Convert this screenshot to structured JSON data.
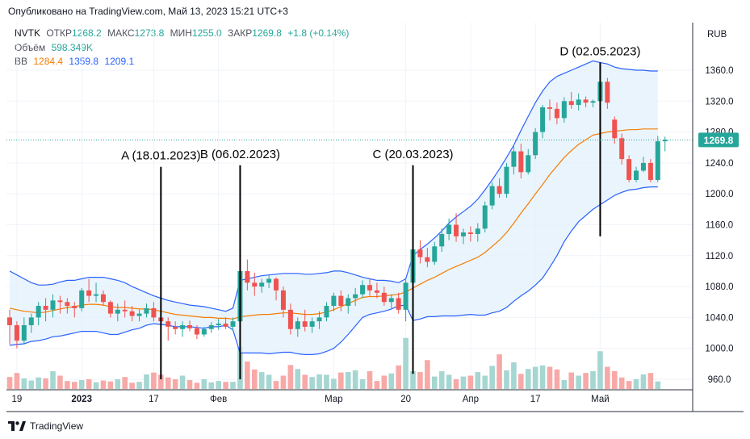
{
  "published": "Опубликовано на TradingView.com, Май 13, 2023 15:21 UTC+3",
  "legend": {
    "symbol": "NVTK",
    "open_label": "ОТКР",
    "open": "1268.2",
    "high_label": "МАКС",
    "high": "1273.8",
    "low_label": "МИН",
    "low": "1255.0",
    "close_label": "ЗАКР",
    "close": "1269.8",
    "change": "+1.8 (+0.14%)",
    "volume_label": "Объём",
    "volume": "598.349K",
    "bb_label": "BB",
    "bb_basis": "1284.4",
    "bb_upper": "1359.8",
    "bb_lower": "1209.1"
  },
  "currency": "RUB",
  "last_price": "1269.8",
  "footer_brand": "TradingView",
  "chart_data": {
    "type": "candlestick",
    "ylim": [
      945,
      1380
    ],
    "y_ticks": [
      "1360.0",
      "1320.0",
      "1280.0",
      "1240.0",
      "1200.0",
      "1160.0",
      "1120.0",
      "1080.0",
      "1040.0",
      "1000.0",
      "960.0"
    ],
    "x_ticks": [
      {
        "label": "19",
        "i": 1
      },
      {
        "label": "2023",
        "i": 10
      },
      {
        "label": "17",
        "i": 20
      },
      {
        "label": "Фев",
        "i": 29
      },
      {
        "label": "Мар",
        "i": 45
      },
      {
        "label": "20",
        "i": 55
      },
      {
        "label": "Апр",
        "i": 64
      },
      {
        "label": "17",
        "i": 73
      },
      {
        "label": "Май",
        "i": 82
      }
    ],
    "annotations": [
      {
        "label": "A (18.01.2023)",
        "i": 21,
        "y_top": 1235,
        "y_bottom": 960
      },
      {
        "label": "B (06.02.2023)",
        "i": 32,
        "y_top": 1237,
        "y_bottom": 960
      },
      {
        "label": "C (20.03.2023)",
        "i": 56,
        "y_top": 1237,
        "y_bottom": 967
      },
      {
        "label": "D (02.05.2023)",
        "i": 82,
        "y_top": 1370,
        "y_bottom": 1145
      }
    ],
    "colors": {
      "up": "#26a69a",
      "down": "#ef5350",
      "up_vol": "#a5d6d2",
      "down_vol": "#f7a9a7",
      "basis": "#f57c00",
      "band": "#2962ff",
      "fill": "#e3f0fb"
    },
    "candles": [
      [
        1040,
        1050,
        1005,
        1030
      ],
      [
        1030,
        1035,
        1000,
        1010
      ],
      [
        1010,
        1040,
        1005,
        1030
      ],
      [
        1030,
        1045,
        1020,
        1040
      ],
      [
        1040,
        1060,
        1030,
        1055
      ],
      [
        1055,
        1065,
        1035,
        1050
      ],
      [
        1050,
        1070,
        1040,
        1062
      ],
      [
        1062,
        1068,
        1045,
        1060
      ],
      [
        1060,
        1065,
        1045,
        1055
      ],
      [
        1055,
        1060,
        1040,
        1052
      ],
      [
        1052,
        1078,
        1048,
        1075
      ],
      [
        1075,
        1090,
        1060,
        1068
      ],
      [
        1068,
        1085,
        1060,
        1070
      ],
      [
        1070,
        1075,
        1055,
        1060
      ],
      [
        1060,
        1062,
        1040,
        1045
      ],
      [
        1045,
        1058,
        1035,
        1050
      ],
      [
        1050,
        1062,
        1040,
        1048
      ],
      [
        1048,
        1055,
        1035,
        1042
      ],
      [
        1042,
        1050,
        1035,
        1045
      ],
      [
        1045,
        1058,
        1040,
        1052
      ],
      [
        1052,
        1060,
        1035,
        1040
      ],
      [
        1040,
        1048,
        1020,
        1035
      ],
      [
        1035,
        1040,
        1010,
        1028
      ],
      [
        1028,
        1035,
        1018,
        1025
      ],
      [
        1025,
        1035,
        1015,
        1030
      ],
      [
        1030,
        1036,
        1022,
        1026
      ],
      [
        1026,
        1030,
        1012,
        1018
      ],
      [
        1018,
        1028,
        1015,
        1025
      ],
      [
        1025,
        1034,
        1020,
        1030
      ],
      [
        1030,
        1038,
        1024,
        1032
      ],
      [
        1032,
        1040,
        1025,
        1028
      ],
      [
        1028,
        1040,
        1022,
        1035
      ],
      [
        1035,
        1103,
        1030,
        1100
      ],
      [
        1100,
        1115,
        1075,
        1085
      ],
      [
        1085,
        1098,
        1068,
        1080
      ],
      [
        1080,
        1090,
        1072,
        1085
      ],
      [
        1085,
        1095,
        1078,
        1090
      ],
      [
        1090,
        1092,
        1062,
        1075
      ],
      [
        1075,
        1080,
        1040,
        1050
      ],
      [
        1050,
        1058,
        1018,
        1025
      ],
      [
        1025,
        1040,
        1015,
        1035
      ],
      [
        1035,
        1050,
        1022,
        1028
      ],
      [
        1028,
        1040,
        1020,
        1035
      ],
      [
        1035,
        1048,
        1025,
        1040
      ],
      [
        1040,
        1060,
        1035,
        1055
      ],
      [
        1055,
        1072,
        1048,
        1068
      ],
      [
        1068,
        1075,
        1048,
        1055
      ],
      [
        1055,
        1070,
        1045,
        1065
      ],
      [
        1065,
        1078,
        1055,
        1070
      ],
      [
        1070,
        1088,
        1065,
        1082
      ],
      [
        1082,
        1090,
        1068,
        1075
      ],
      [
        1075,
        1085,
        1065,
        1072
      ],
      [
        1072,
        1080,
        1055,
        1060
      ],
      [
        1060,
        1070,
        1052,
        1065
      ],
      [
        1065,
        1072,
        1045,
        1050
      ],
      [
        1050,
        1090,
        1035,
        1085
      ],
      [
        1085,
        1135,
        1080,
        1128
      ],
      [
        1128,
        1140,
        1110,
        1118
      ],
      [
        1118,
        1130,
        1105,
        1112
      ],
      [
        1112,
        1138,
        1108,
        1132
      ],
      [
        1132,
        1155,
        1125,
        1148
      ],
      [
        1148,
        1168,
        1140,
        1160
      ],
      [
        1160,
        1175,
        1138,
        1145
      ],
      [
        1145,
        1155,
        1135,
        1150
      ],
      [
        1150,
        1158,
        1138,
        1148
      ],
      [
        1148,
        1162,
        1138,
        1155
      ],
      [
        1155,
        1190,
        1150,
        1185
      ],
      [
        1185,
        1215,
        1180,
        1210
      ],
      [
        1210,
        1220,
        1195,
        1200
      ],
      [
        1200,
        1240,
        1195,
        1235
      ],
      [
        1235,
        1262,
        1225,
        1255
      ],
      [
        1255,
        1265,
        1220,
        1228
      ],
      [
        1228,
        1258,
        1225,
        1250
      ],
      [
        1250,
        1285,
        1245,
        1280
      ],
      [
        1280,
        1315,
        1272,
        1312
      ],
      [
        1312,
        1322,
        1295,
        1310
      ],
      [
        1310,
        1318,
        1290,
        1298
      ],
      [
        1298,
        1325,
        1292,
        1320
      ],
      [
        1320,
        1332,
        1310,
        1315
      ],
      [
        1315,
        1330,
        1308,
        1322
      ],
      [
        1322,
        1326,
        1312,
        1318
      ],
      [
        1318,
        1322,
        1312,
        1320
      ],
      [
        1320,
        1350,
        1312,
        1345
      ],
      [
        1345,
        1350,
        1310,
        1318
      ],
      [
        1296,
        1300,
        1265,
        1272
      ],
      [
        1272,
        1278,
        1238,
        1245
      ],
      [
        1245,
        1250,
        1215,
        1218
      ],
      [
        1218,
        1235,
        1215,
        1230
      ],
      [
        1230,
        1248,
        1228,
        1240
      ],
      [
        1240,
        1245,
        1215,
        1218
      ],
      [
        1218,
        1275,
        1215,
        1268
      ],
      [
        1268,
        1274,
        1255,
        1270
      ]
    ],
    "volume": [
      27,
      36,
      24,
      19,
      26,
      24,
      40,
      30,
      18,
      16,
      20,
      22,
      15,
      19,
      17,
      22,
      27,
      14,
      16,
      33,
      37,
      32,
      26,
      22,
      30,
      20,
      14,
      22,
      15,
      18,
      16,
      16,
      95,
      62,
      44,
      38,
      32,
      18,
      30,
      54,
      45,
      32,
      27,
      33,
      32,
      23,
      37,
      38,
      42,
      22,
      40,
      18,
      30,
      35,
      53,
      115,
      40,
      38,
      65,
      28,
      40,
      32,
      22,
      28,
      30,
      38,
      30,
      52,
      78,
      42,
      60,
      34,
      45,
      50,
      53,
      50,
      44,
      20,
      37,
      30,
      36,
      40,
      85,
      50,
      40,
      26,
      18,
      22,
      33,
      36,
      17
    ],
    "bb_basis": [
      1052,
      1050,
      1048,
      1047,
      1046,
      1047,
      1049,
      1051,
      1053,
      1054,
      1056,
      1057,
      1057,
      1056,
      1054,
      1053,
      1053,
      1052,
      1051,
      1051,
      1050,
      1048,
      1046,
      1044,
      1043,
      1042,
      1041,
      1040,
      1040,
      1039,
      1039,
      1038,
      1041,
      1042,
      1043,
      1044,
      1044,
      1045,
      1046,
      1046,
      1045,
      1044,
      1044,
      1045,
      1047,
      1050,
      1054,
      1058,
      1062,
      1066,
      1067,
      1067,
      1068,
      1069,
      1070,
      1073,
      1078,
      1083,
      1088,
      1092,
      1097,
      1102,
      1106,
      1110,
      1114,
      1118,
      1124,
      1132,
      1140,
      1150,
      1162,
      1175,
      1187,
      1200,
      1212,
      1225,
      1236,
      1247,
      1256,
      1264,
      1270,
      1276,
      1278,
      1280,
      1281,
      1282,
      1283,
      1283,
      1284,
      1284,
      1284
    ],
    "bb_upper": [
      1100,
      1095,
      1090,
      1085,
      1082,
      1082,
      1083,
      1086,
      1088,
      1088,
      1090,
      1092,
      1092,
      1092,
      1090,
      1088,
      1085,
      1080,
      1076,
      1072,
      1068,
      1065,
      1062,
      1060,
      1058,
      1056,
      1055,
      1054,
      1052,
      1050,
      1048,
      1052,
      1088,
      1090,
      1092,
      1094,
      1095,
      1096,
      1097,
      1097,
      1097,
      1096,
      1096,
      1097,
      1098,
      1100,
      1100,
      1098,
      1095,
      1092,
      1090,
      1088,
      1088,
      1087,
      1085,
      1090,
      1120,
      1128,
      1135,
      1143,
      1152,
      1162,
      1170,
      1177,
      1184,
      1193,
      1205,
      1218,
      1232,
      1247,
      1263,
      1282,
      1300,
      1318,
      1333,
      1345,
      1352,
      1356,
      1360,
      1364,
      1368,
      1372,
      1370,
      1368,
      1364,
      1362,
      1361,
      1360,
      1360,
      1359,
      1359
    ],
    "bb_lower": [
      1004,
      1005,
      1006,
      1009,
      1010,
      1012,
      1015,
      1016,
      1018,
      1020,
      1022,
      1022,
      1022,
      1020,
      1018,
      1018,
      1021,
      1024,
      1026,
      1030,
      1032,
      1031,
      1030,
      1028,
      1028,
      1028,
      1027,
      1026,
      1028,
      1028,
      1030,
      1024,
      994,
      994,
      994,
      994,
      993,
      994,
      995,
      995,
      993,
      992,
      992,
      993,
      996,
      1000,
      1008,
      1018,
      1029,
      1040,
      1044,
      1046,
      1048,
      1051,
      1055,
      1056,
      1036,
      1038,
      1041,
      1041,
      1042,
      1042,
      1042,
      1043,
      1044,
      1043,
      1043,
      1046,
      1048,
      1053,
      1061,
      1068,
      1074,
      1082,
      1091,
      1105,
      1120,
      1138,
      1152,
      1164,
      1172,
      1180,
      1186,
      1192,
      1198,
      1202,
      1205,
      1206,
      1208,
      1209,
      1209
    ]
  }
}
